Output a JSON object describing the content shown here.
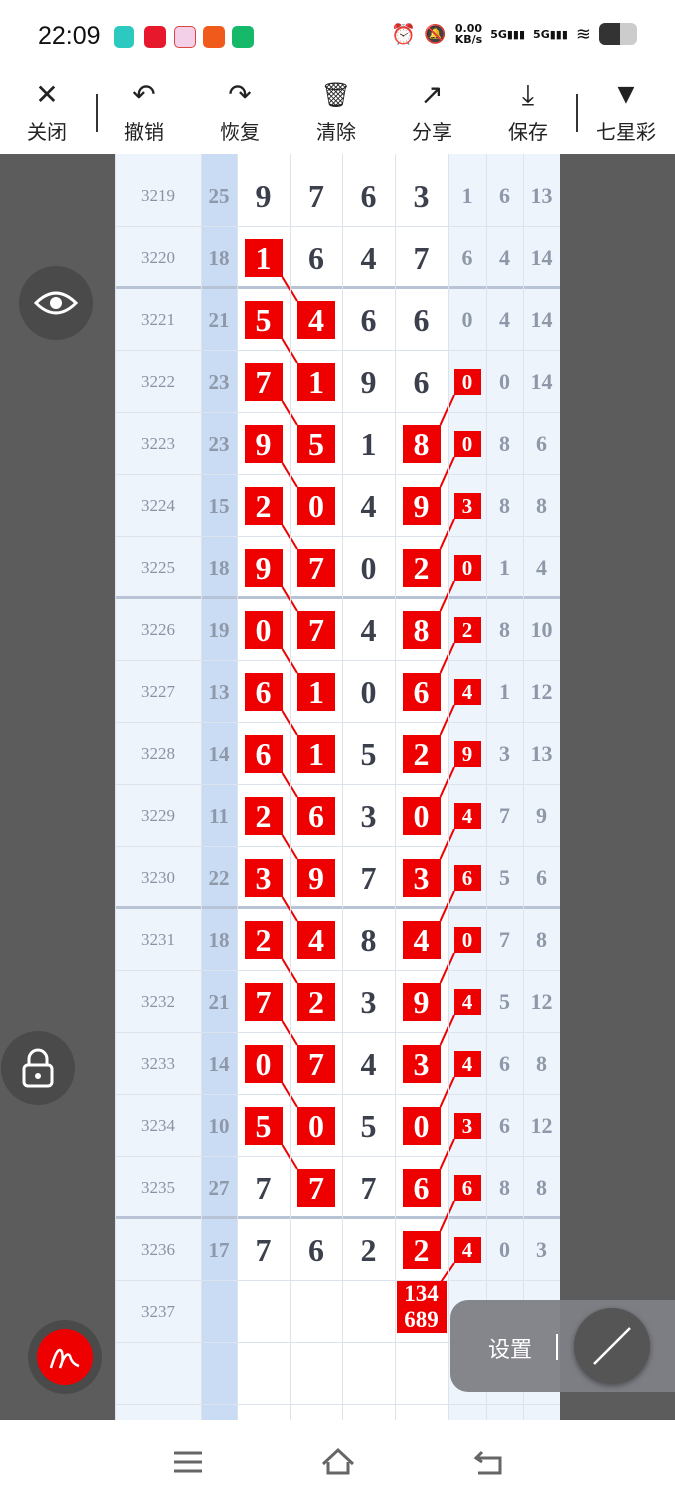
{
  "status": {
    "time": "22:09",
    "net_speed": "0.00",
    "net_unit": "KB/s",
    "sig1": "5G",
    "sig2": "5G"
  },
  "toolbar": {
    "close": "关闭",
    "undo": "撤销",
    "redo": "恢复",
    "clear": "清除",
    "share": "分享",
    "save": "保存",
    "lottery": "七星彩"
  },
  "colors": {
    "highlight": "#ee0000",
    "sum_column": "#c9dcf3",
    "side_column": "#eef4fc"
  },
  "rows": [
    {
      "p": "3219",
      "s": "25",
      "d": [
        "9",
        "7",
        "6",
        "3"
      ],
      "x": [
        "1",
        "6",
        "13"
      ],
      "h": [
        0,
        0,
        0,
        0,
        0
      ]
    },
    {
      "p": "3220",
      "s": "18",
      "d": [
        "1",
        "6",
        "4",
        "7"
      ],
      "x": [
        "6",
        "4",
        "14"
      ],
      "h": [
        1,
        0,
        0,
        0,
        0
      ]
    },
    {
      "p": "3221",
      "s": "21",
      "d": [
        "5",
        "4",
        "6",
        "6"
      ],
      "x": [
        "0",
        "4",
        "14"
      ],
      "h": [
        1,
        1,
        0,
        0,
        0
      ]
    },
    {
      "p": "3222",
      "s": "23",
      "d": [
        "7",
        "1",
        "9",
        "6"
      ],
      "x": [
        "0",
        "0",
        "14"
      ],
      "h": [
        1,
        1,
        0,
        0,
        1
      ]
    },
    {
      "p": "3223",
      "s": "23",
      "d": [
        "9",
        "5",
        "1",
        "8"
      ],
      "x": [
        "0",
        "8",
        "6"
      ],
      "h": [
        1,
        1,
        0,
        1,
        1
      ]
    },
    {
      "p": "3224",
      "s": "15",
      "d": [
        "2",
        "0",
        "4",
        "9"
      ],
      "x": [
        "3",
        "8",
        "8"
      ],
      "h": [
        1,
        1,
        0,
        1,
        1
      ]
    },
    {
      "p": "3225",
      "s": "18",
      "d": [
        "9",
        "7",
        "0",
        "2"
      ],
      "x": [
        "0",
        "1",
        "4"
      ],
      "h": [
        1,
        1,
        0,
        1,
        1
      ]
    },
    {
      "p": "3226",
      "s": "19",
      "d": [
        "0",
        "7",
        "4",
        "8"
      ],
      "x": [
        "2",
        "8",
        "10"
      ],
      "h": [
        1,
        1,
        0,
        1,
        1
      ]
    },
    {
      "p": "3227",
      "s": "13",
      "d": [
        "6",
        "1",
        "0",
        "6"
      ],
      "x": [
        "4",
        "1",
        "12"
      ],
      "h": [
        1,
        1,
        0,
        1,
        1
      ]
    },
    {
      "p": "3228",
      "s": "14",
      "d": [
        "6",
        "1",
        "5",
        "2"
      ],
      "x": [
        "9",
        "3",
        "13"
      ],
      "h": [
        1,
        1,
        0,
        1,
        1
      ]
    },
    {
      "p": "3229",
      "s": "11",
      "d": [
        "2",
        "6",
        "3",
        "0"
      ],
      "x": [
        "4",
        "7",
        "9"
      ],
      "h": [
        1,
        1,
        0,
        1,
        1
      ]
    },
    {
      "p": "3230",
      "s": "22",
      "d": [
        "3",
        "9",
        "7",
        "3"
      ],
      "x": [
        "6",
        "5",
        "6"
      ],
      "h": [
        1,
        1,
        0,
        1,
        1
      ]
    },
    {
      "p": "3231",
      "s": "18",
      "d": [
        "2",
        "4",
        "8",
        "4"
      ],
      "x": [
        "0",
        "7",
        "8"
      ],
      "h": [
        1,
        1,
        0,
        1,
        1
      ]
    },
    {
      "p": "3232",
      "s": "21",
      "d": [
        "7",
        "2",
        "3",
        "9"
      ],
      "x": [
        "4",
        "5",
        "12"
      ],
      "h": [
        1,
        1,
        0,
        1,
        1
      ]
    },
    {
      "p": "3233",
      "s": "14",
      "d": [
        "0",
        "7",
        "4",
        "3"
      ],
      "x": [
        "4",
        "6",
        "8"
      ],
      "h": [
        1,
        1,
        0,
        1,
        1
      ]
    },
    {
      "p": "3234",
      "s": "10",
      "d": [
        "5",
        "0",
        "5",
        "0"
      ],
      "x": [
        "3",
        "6",
        "12"
      ],
      "h": [
        1,
        1,
        0,
        1,
        1
      ]
    },
    {
      "p": "3235",
      "s": "27",
      "d": [
        "7",
        "7",
        "7",
        "6"
      ],
      "x": [
        "6",
        "8",
        "8"
      ],
      "h": [
        0,
        1,
        0,
        1,
        1
      ]
    },
    {
      "p": "3236",
      "s": "17",
      "d": [
        "7",
        "6",
        "2",
        "2"
      ],
      "x": [
        "4",
        "0",
        "3"
      ],
      "h": [
        0,
        0,
        0,
        1,
        1
      ]
    }
  ],
  "next": {
    "p": "3237",
    "prediction_line1": "134",
    "prediction_line2": "689"
  },
  "floating": {
    "settings": "设置"
  }
}
